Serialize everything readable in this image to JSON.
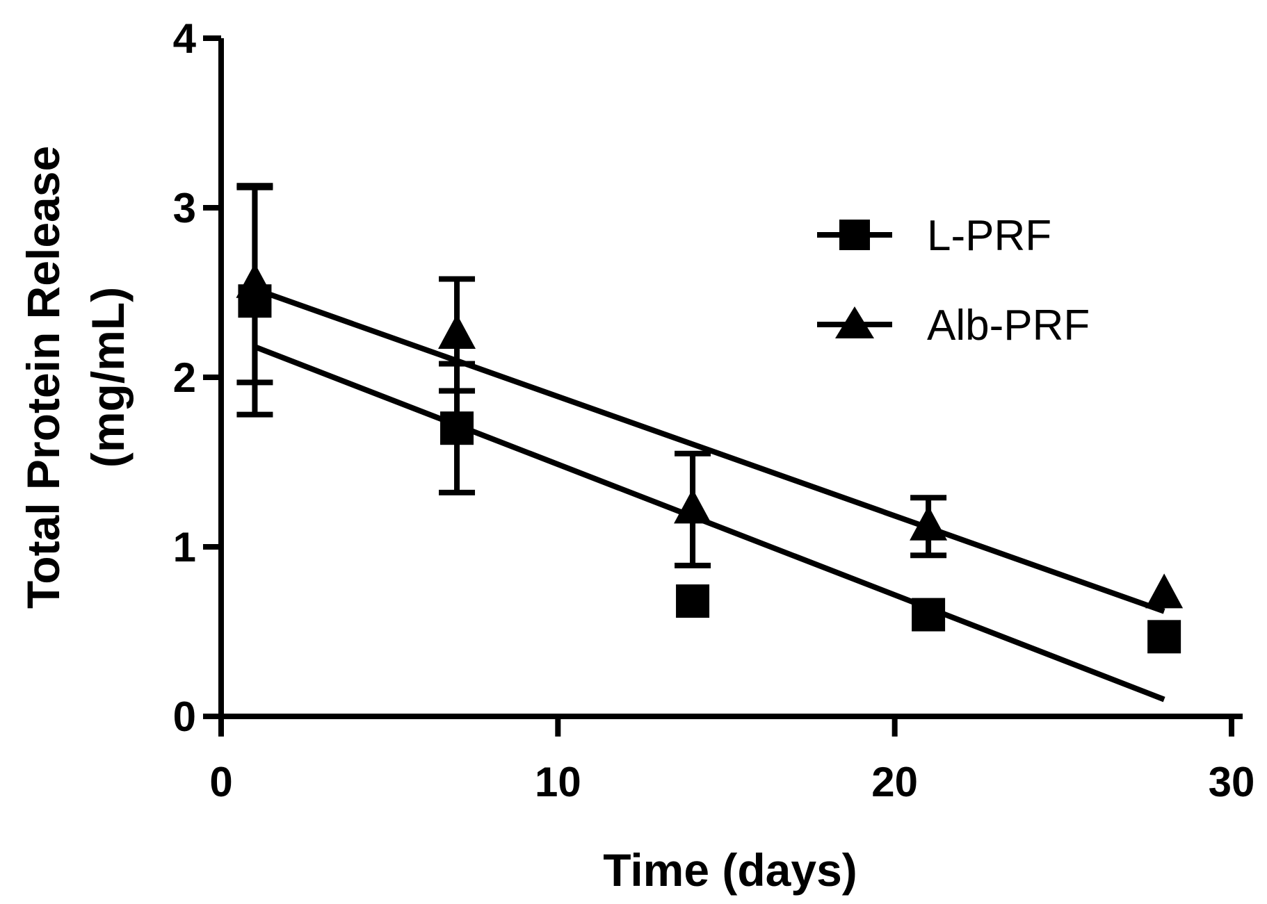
{
  "chart_data": {
    "type": "scatter",
    "title": "",
    "xlabel": "Time (days)",
    "ylabel_lines": [
      "Total Protein Release",
      "(mg/mL)"
    ],
    "xlim": [
      0,
      30
    ],
    "ylim": [
      0,
      4
    ],
    "xticks": [
      0,
      10,
      20,
      30
    ],
    "yticks": [
      0,
      1,
      2,
      3,
      4
    ],
    "grid": false,
    "legend_position": "top-right",
    "series": [
      {
        "name": "L-PRF",
        "marker": "square",
        "color": "#000000",
        "x": [
          1,
          7,
          14,
          21,
          28
        ],
        "y": [
          2.45,
          1.7,
          0.68,
          0.6,
          0.47
        ],
        "err": [
          0.67,
          0.38,
          null,
          null,
          null
        ],
        "fit": {
          "x": [
            1,
            28
          ],
          "y": [
            2.18,
            0.1
          ]
        }
      },
      {
        "name": "Alb-PRF",
        "marker": "triangle",
        "color": "#000000",
        "x": [
          1,
          7,
          14,
          21,
          28
        ],
        "y": [
          2.55,
          2.25,
          1.22,
          1.12,
          0.72
        ],
        "err": [
          0.58,
          0.33,
          0.33,
          0.17,
          null
        ],
        "fit": {
          "x": [
            1,
            28
          ],
          "y": [
            2.52,
            0.62
          ]
        }
      }
    ]
  }
}
